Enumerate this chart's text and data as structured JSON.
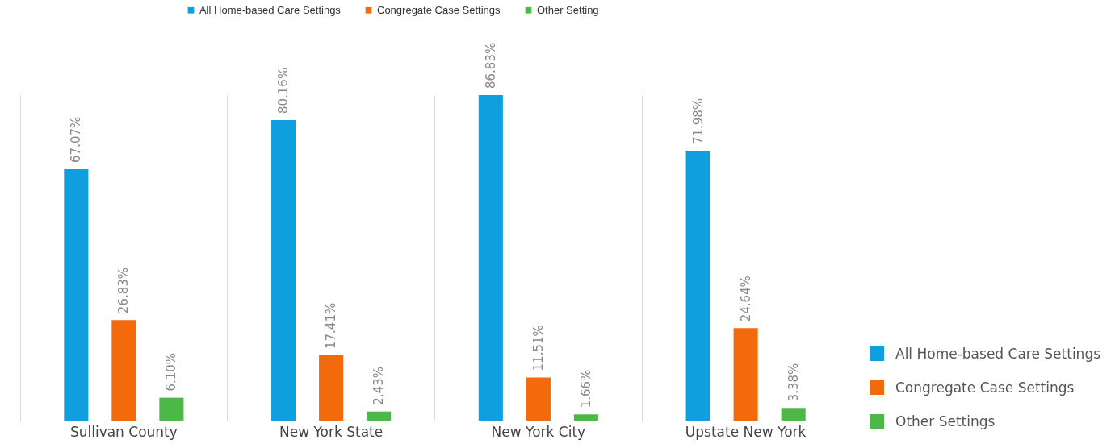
{
  "chart_data": {
    "type": "bar",
    "categories": [
      "Sullivan County",
      "New York State",
      "New York City",
      "Upstate New York"
    ],
    "series": [
      {
        "name": "All Home-based Care Settings",
        "color": "#0f9fde",
        "values": [
          67.07,
          80.16,
          86.83,
          71.98
        ],
        "value_labels": [
          "67.07%",
          "80.16%",
          "86.83%",
          "71.98%"
        ]
      },
      {
        "name": "Congregate Case Settings",
        "color": "#f26a0c",
        "values": [
          26.83,
          17.41,
          11.51,
          24.64
        ],
        "value_labels": [
          "26.83%",
          "17.41%",
          "11.51%",
          "24.64%"
        ]
      },
      {
        "name": "Other Setting",
        "color": "#4cb848",
        "values": [
          6.1,
          2.43,
          1.66,
          3.38
        ],
        "value_labels": [
          "6.10%",
          "2.43%",
          "1.66%",
          "3.38%"
        ]
      }
    ],
    "annotations": [
      "All Home-based Care Settings",
      "Congregate Case Settings",
      "Other Settings"
    ],
    "legend": "top",
    "grid": "x",
    "tick_labels": "x"
  }
}
